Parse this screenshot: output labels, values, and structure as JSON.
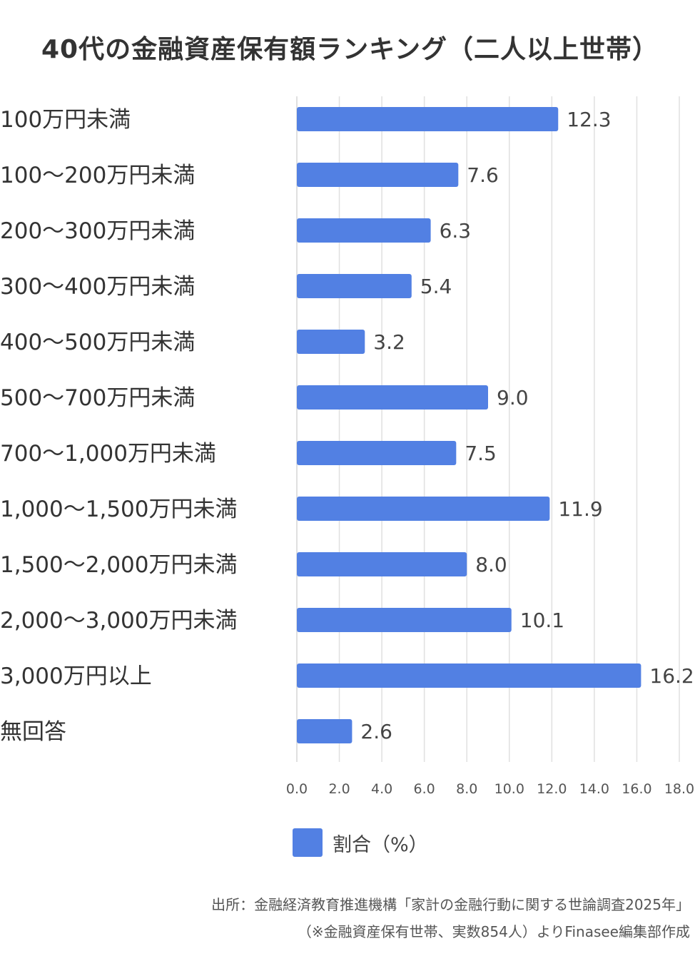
{
  "chart_data": {
    "type": "bar",
    "orientation": "horizontal",
    "title": "40代の金融資産保有額ランキング（二人以上世帯）",
    "categories": [
      "100万円未満",
      "100〜200万円未満",
      "200〜300万円未満",
      "300〜400万円未満",
      "400〜500万円未満",
      "500〜700万円未満",
      "700〜1,000万円未満",
      "1,000〜1,500万円未満",
      "1,500〜2,000万円未満",
      "2,000〜3,000万円未満",
      "3,000万円以上",
      "無回答"
    ],
    "series": [
      {
        "name": "割合（%）",
        "values": [
          12.3,
          7.6,
          6.3,
          5.4,
          3.2,
          9.0,
          7.5,
          11.9,
          8.0,
          10.1,
          16.2,
          2.6
        ],
        "value_labels": [
          "12.3",
          "7.6",
          "6.3",
          "5.4",
          "3.2",
          "9.0",
          "7.5",
          "11.9",
          "8.0",
          "10.1",
          "16.2",
          "2.6"
        ]
      }
    ],
    "xlim": [
      0,
      18
    ],
    "x_ticks": [
      "0.0",
      "2.0",
      "4.0",
      "6.0",
      "8.0",
      "10.0",
      "12.0",
      "14.0",
      "16.0",
      "18.0"
    ],
    "grid": "vertical",
    "legend_position": "bottom",
    "bar_color": "#5280e3",
    "grid_color": "#e0e0e0"
  },
  "source": {
    "line1": "出所：金融経済教育推進機構「家計の金融行動に関する世論調査2025年」",
    "line2": "（※金融資産保有世帯、実数854人）よりFinasee編集部作成"
  }
}
